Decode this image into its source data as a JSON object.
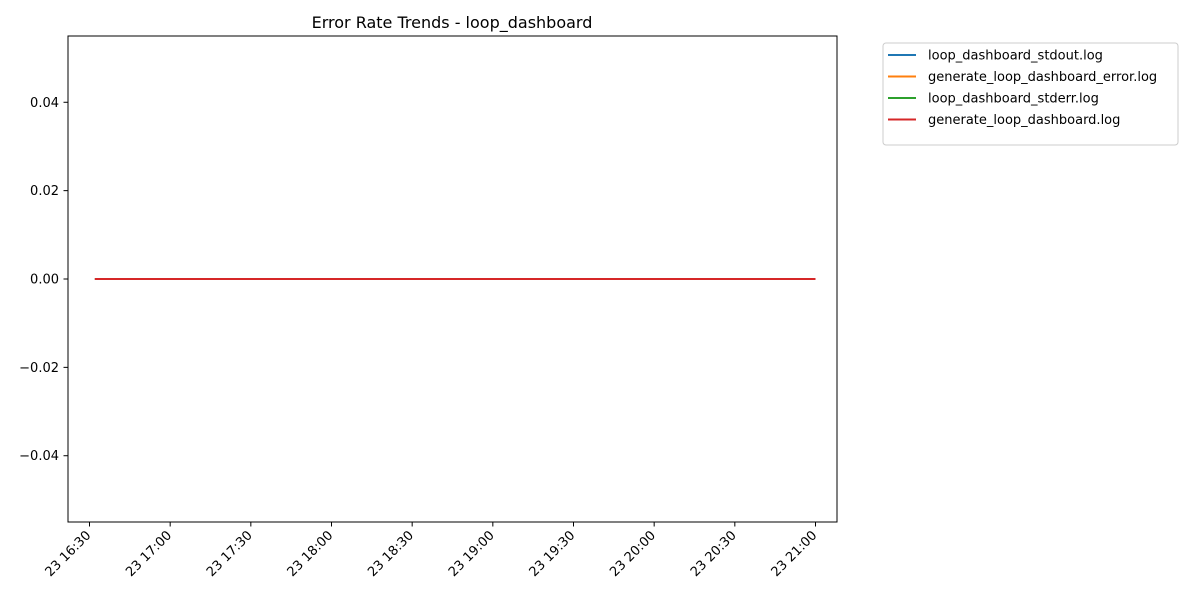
{
  "chart_data": {
    "type": "line",
    "title": "Error Rate Trends - loop_dashboard",
    "xlabel": "",
    "ylabel": "",
    "x_ticks": [
      "23 16:30",
      "23 17:00",
      "23 17:30",
      "23 18:00",
      "23 18:30",
      "23 19:00",
      "23 19:30",
      "23 20:00",
      "23 20:30",
      "23 21:00"
    ],
    "y_ticks": [
      "0.04",
      "0.02",
      "0.00",
      "−0.02",
      "−0.04"
    ],
    "x_range": [
      "23 16:22",
      "23 21:08"
    ],
    "ylim": [
      -0.055,
      0.055
    ],
    "grid": false,
    "legend_position": "outside upper right",
    "series": [
      {
        "name": "loop_dashboard_stdout.log",
        "color": "#1f77b4",
        "x": [
          "23 16:32",
          "23 21:00"
        ],
        "y": [
          0.0,
          0.0
        ]
      },
      {
        "name": "generate_loop_dashboard_error.log",
        "color": "#ff7f0e",
        "x": [
          "23 16:32",
          "23 21:00"
        ],
        "y": [
          0.0,
          0.0
        ]
      },
      {
        "name": "loop_dashboard_stderr.log",
        "color": "#2ca02c",
        "x": [
          "23 16:32",
          "23 21:00"
        ],
        "y": [
          0.0,
          0.0
        ]
      },
      {
        "name": "generate_loop_dashboard.log",
        "color": "#d62728",
        "x": [
          "23 16:32",
          "23 21:00"
        ],
        "y": [
          0.0,
          0.0
        ]
      }
    ]
  }
}
